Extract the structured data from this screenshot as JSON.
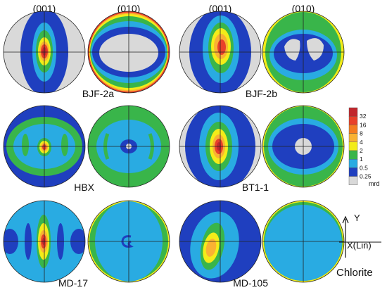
{
  "column_headers": {
    "left_001": "(001)",
    "left_010": "(010)",
    "right_001": "(001)",
    "right_010": "(010)"
  },
  "samples": [
    "BJF-2a",
    "BJF-2b",
    "HBX",
    "BT1-1",
    "MD-17",
    "MD-105"
  ],
  "legend": {
    "ticks": [
      "32",
      "16",
      "8",
      "4",
      "2",
      "1",
      "0.5",
      "0.25"
    ],
    "unit": "mrd",
    "colors": [
      "#c1272d",
      "#e8402a",
      "#f47b20",
      "#f9b233",
      "#f3ec19",
      "#39b54a",
      "#29abe2",
      "#1f3fbf",
      "#d9d9d9"
    ]
  },
  "axes": {
    "y": "Y",
    "x": "X(Lin)"
  },
  "mineral": "Chlorite"
}
